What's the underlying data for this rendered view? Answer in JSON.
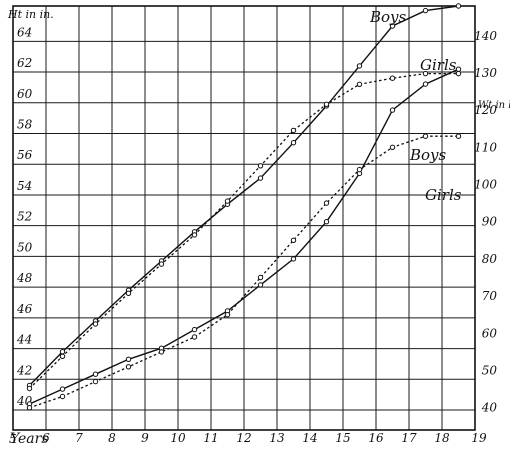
{
  "chart_data": {
    "type": "line",
    "labels": {
      "height_axis": "Ht in in.",
      "weight_axis": "Wt in lbs.",
      "x_axis": "Years",
      "boys_height": "Boys",
      "girls_height": "Girls",
      "boys_weight": "Boys",
      "girls_weight": "Girls"
    },
    "x_ticks": [
      "5",
      "6",
      "7",
      "8",
      "9",
      "10",
      "11",
      "12",
      "13",
      "14",
      "15",
      "16",
      "17",
      "18",
      "19"
    ],
    "height_ticks": [
      "40",
      "42",
      "44",
      "46",
      "48",
      "50",
      "52",
      "54",
      "56",
      "58",
      "60",
      "62",
      "64"
    ],
    "weight_ticks": [
      "40",
      "50",
      "60",
      "70",
      "80",
      "90",
      "100",
      "110",
      "120",
      "130",
      "140"
    ],
    "xlim": [
      5,
      19
    ],
    "height_ylim": [
      38.7,
      66.3
    ],
    "weight_ylim": [
      34,
      148
    ],
    "series": [
      {
        "name": "Boys",
        "measure": "height",
        "style": "solid",
        "points": [
          [
            5.5,
            41.6
          ],
          [
            6.5,
            43.8
          ],
          [
            7.5,
            45.8
          ],
          [
            8.5,
            47.8
          ],
          [
            9.5,
            49.7
          ],
          [
            10.5,
            51.6
          ],
          [
            11.5,
            53.4
          ],
          [
            12.5,
            55.1
          ],
          [
            13.5,
            57.4
          ],
          [
            14.5,
            59.8
          ],
          [
            15.5,
            62.4
          ],
          [
            16.5,
            65.0
          ],
          [
            17.5,
            66.0
          ],
          [
            18.5,
            66.3
          ]
        ]
      },
      {
        "name": "Girls",
        "measure": "height",
        "style": "dashed",
        "points": [
          [
            5.5,
            41.4
          ],
          [
            6.5,
            43.5
          ],
          [
            7.5,
            45.6
          ],
          [
            8.5,
            47.6
          ],
          [
            9.5,
            49.5
          ],
          [
            10.5,
            51.4
          ],
          [
            11.5,
            53.6
          ],
          [
            12.5,
            55.9
          ],
          [
            13.5,
            58.2
          ],
          [
            14.5,
            59.9
          ],
          [
            15.5,
            61.2
          ],
          [
            16.5,
            61.6
          ],
          [
            17.5,
            61.9
          ],
          [
            18.5,
            61.9
          ]
        ]
      },
      {
        "name": "Boys",
        "measure": "weight",
        "style": "solid",
        "points": [
          [
            5.5,
            41
          ],
          [
            6.5,
            45
          ],
          [
            7.5,
            49
          ],
          [
            8.5,
            53
          ],
          [
            9.5,
            56
          ],
          [
            10.5,
            61
          ],
          [
            11.5,
            66
          ],
          [
            12.5,
            73
          ],
          [
            13.5,
            80
          ],
          [
            14.5,
            90
          ],
          [
            15.5,
            103
          ],
          [
            16.5,
            120
          ],
          [
            17.5,
            127
          ],
          [
            18.5,
            131
          ]
        ]
      },
      {
        "name": "Girls",
        "measure": "weight",
        "style": "dashed",
        "points": [
          [
            5.5,
            40
          ],
          [
            6.5,
            43
          ],
          [
            7.5,
            47
          ],
          [
            8.5,
            51
          ],
          [
            9.5,
            55
          ],
          [
            10.5,
            59
          ],
          [
            11.5,
            65
          ],
          [
            12.5,
            75
          ],
          [
            13.5,
            85
          ],
          [
            14.5,
            95
          ],
          [
            15.5,
            104
          ],
          [
            16.5,
            110
          ],
          [
            17.5,
            113
          ],
          [
            18.5,
            113
          ]
        ]
      }
    ]
  }
}
